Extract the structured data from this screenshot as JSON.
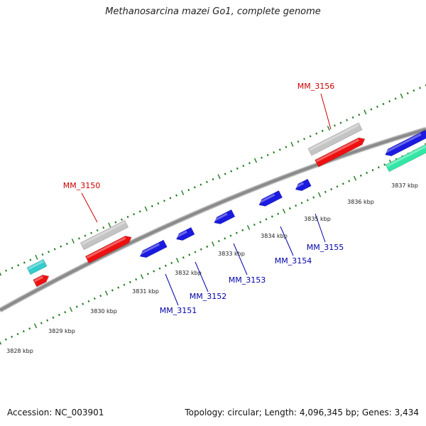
{
  "title": "Methanosarcina mazei Go1, complete genome",
  "footer": {
    "accession": "Accession: NC_003901",
    "summary": "Topology: circular; Length: 4,096,345 bp; Genes: 3,434"
  },
  "colors": {
    "backbone": "#8a8a8a",
    "tick": "#1f7a1f",
    "forward_gene": "#ee1111",
    "reverse_gene": "#1a1ae0",
    "grey_feature": "#c4c4c4",
    "cyan_feature": "#33cccc",
    "teal_feature": "#33e6a6",
    "forward_label": "#cc0000",
    "reverse_label": "#0000aa",
    "scale_label": "#222222"
  },
  "scale": {
    "unit": "kbp",
    "labels": [
      "3828 kbp",
      "3829 kbp",
      "3830 kbp",
      "3831 kbp",
      "3832 kbp",
      "3833 kbp",
      "3834 kbp",
      "3835 kbp",
      "3836 kbp",
      "3837 kbp"
    ]
  },
  "genes": [
    {
      "id": "MM_3150",
      "strand": "forward"
    },
    {
      "id": "MM_3151",
      "strand": "reverse"
    },
    {
      "id": "MM_3152",
      "strand": "reverse"
    },
    {
      "id": "MM_3153",
      "strand": "reverse"
    },
    {
      "id": "MM_3154",
      "strand": "reverse"
    },
    {
      "id": "MM_3155",
      "strand": "reverse"
    },
    {
      "id": "MM_3156",
      "strand": "forward"
    }
  ]
}
